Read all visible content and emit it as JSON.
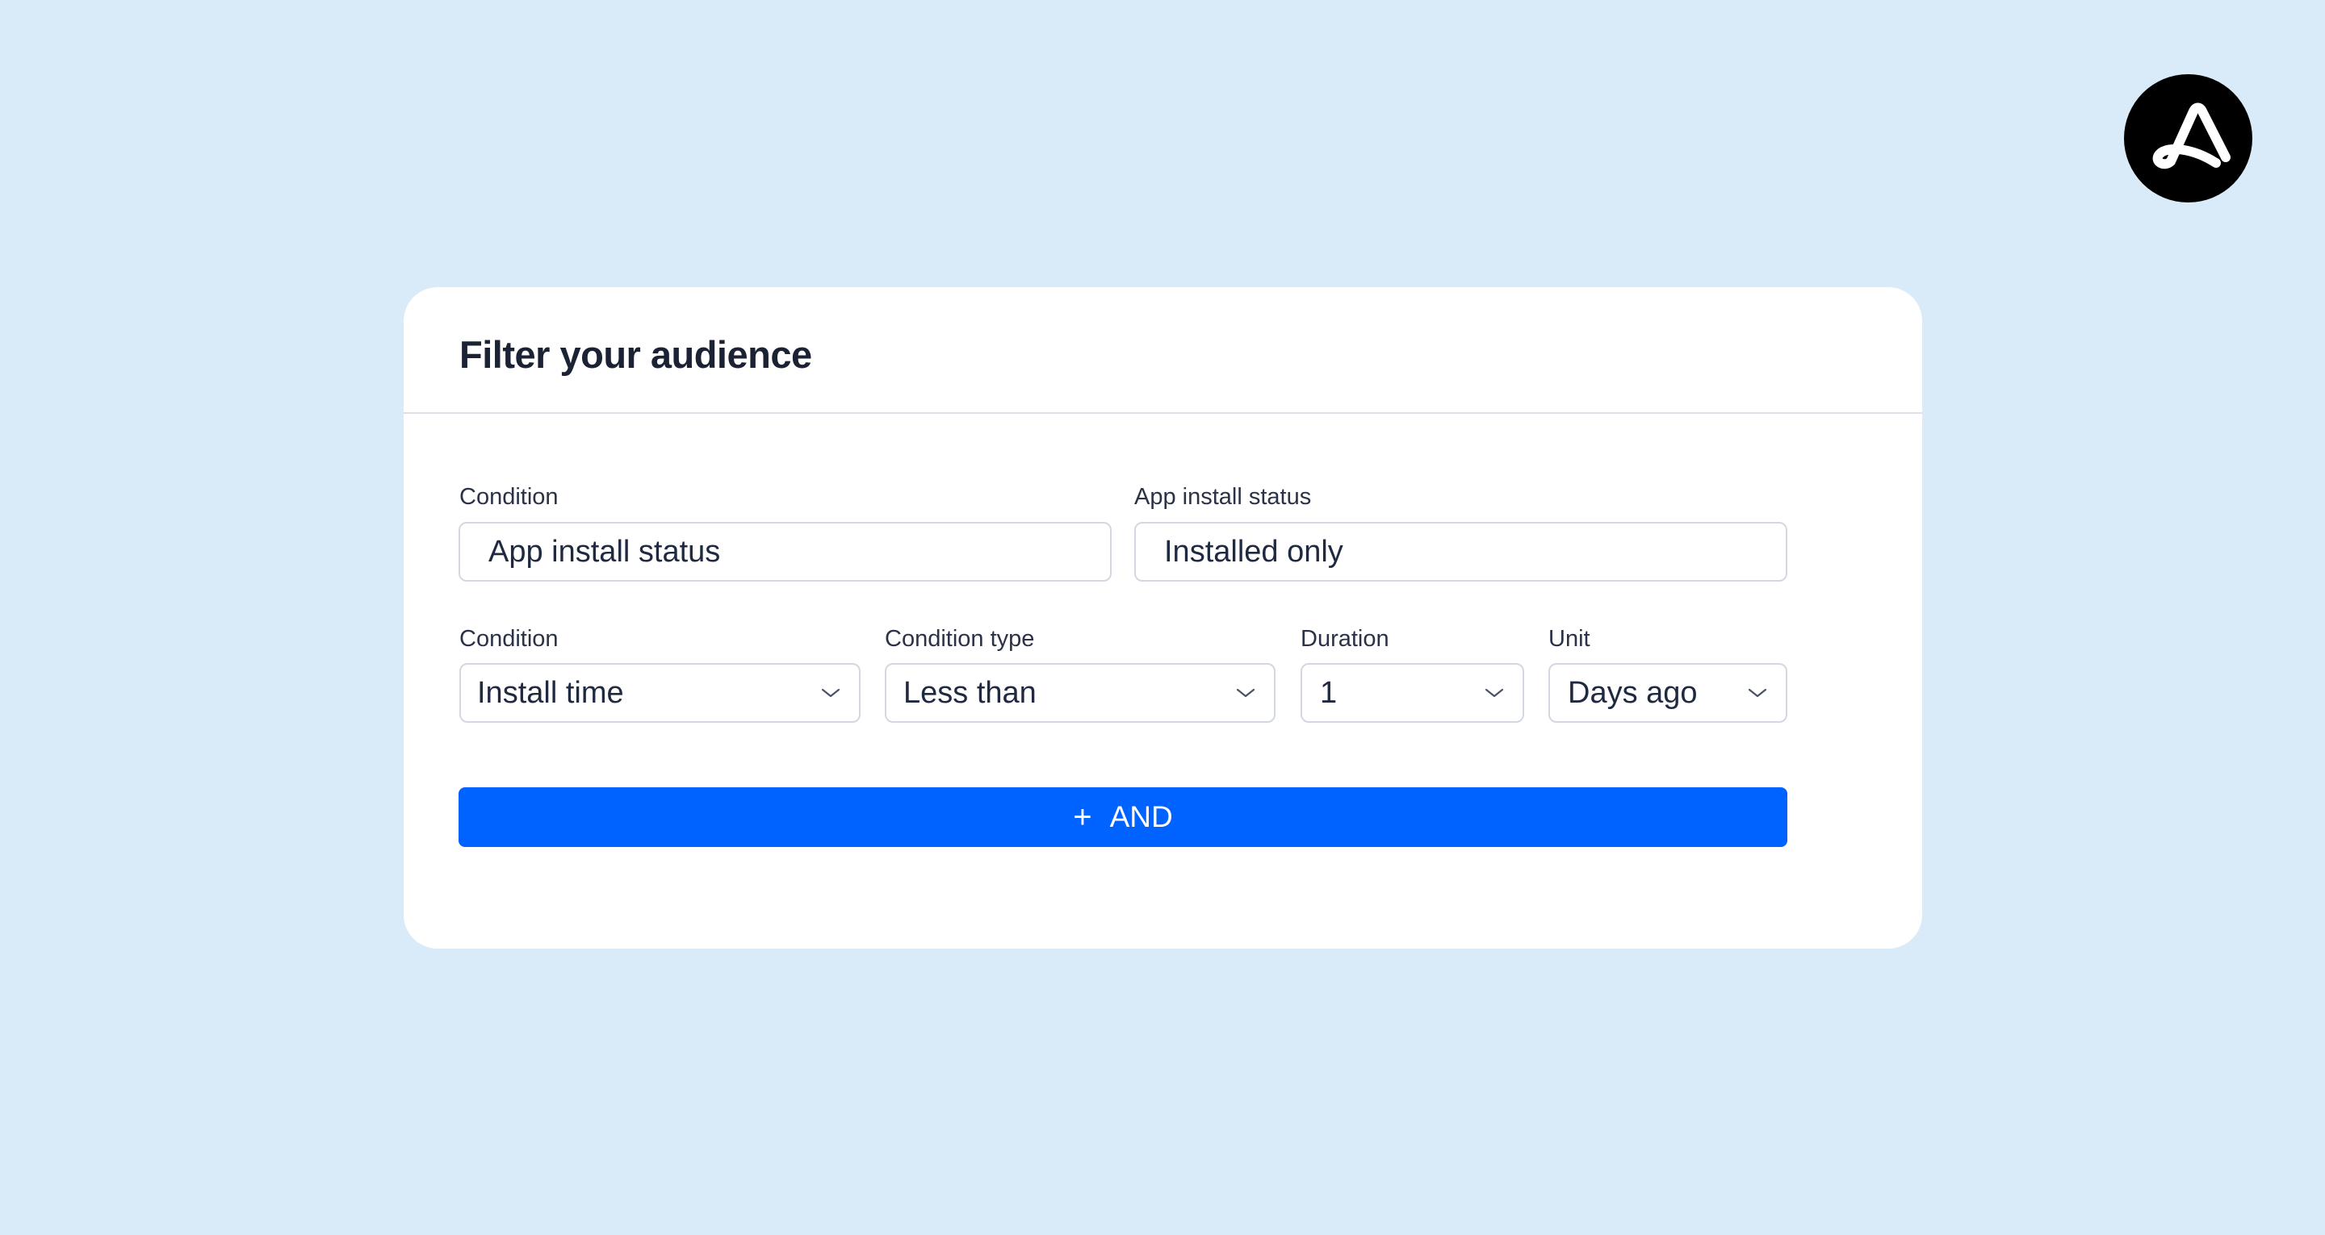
{
  "brand": {
    "logo_icon": "a-logo-icon",
    "logo_bg": "#000000"
  },
  "card": {
    "title": "Filter your audience"
  },
  "row1": {
    "condition": {
      "label": "Condition",
      "value": "App install status"
    },
    "status": {
      "label": "App install status",
      "value": "Installed only"
    }
  },
  "row2": {
    "condition": {
      "label": "Condition",
      "value": "Install time",
      "icon": "chevron-down-icon"
    },
    "condition_type": {
      "label": "Condition type",
      "value": "Less than",
      "icon": "chevron-down-icon"
    },
    "duration": {
      "label": "Duration",
      "value": "1",
      "icon": "chevron-down-icon"
    },
    "unit": {
      "label": "Unit",
      "value": "Days ago",
      "icon": "chevron-down-icon"
    }
  },
  "and_button": {
    "icon": "+",
    "label": "AND",
    "color": "#0062ff"
  },
  "colors": {
    "background": "#d9ebf8",
    "card": "#ffffff",
    "text": "#1b2233",
    "accent": "#0062ff"
  }
}
